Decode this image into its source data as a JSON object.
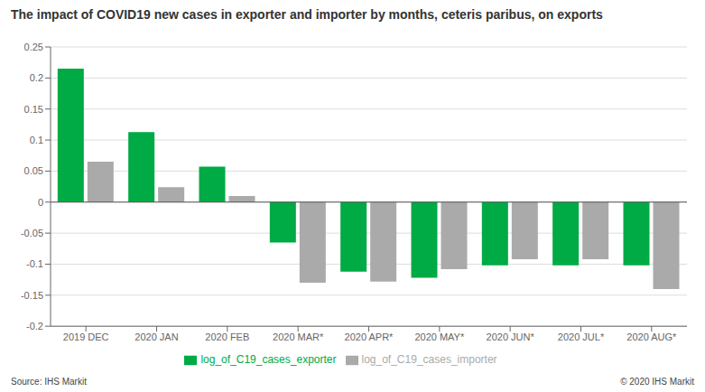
{
  "chart_data": {
    "type": "bar",
    "title": "The impact of COVID19 new cases in exporter and importer by months, ceteris paribus, on exports",
    "categories": [
      "2019 DEC",
      "2020 JAN",
      "2020 FEB",
      "2020 MAR*",
      "2020 APR*",
      "2020 MAY*",
      "2020 JUN*",
      "2020 JUL*",
      "2020 AUG*"
    ],
    "series": [
      {
        "name": "log_of_C19_cases_exporter",
        "color": "#00aa44",
        "values": [
          0.215,
          0.113,
          0.057,
          -0.065,
          -0.112,
          -0.122,
          -0.102,
          -0.102,
          -0.102
        ]
      },
      {
        "name": "log_of_C19_cases_importer",
        "color": "#aaaaaa",
        "values": [
          0.065,
          0.024,
          0.01,
          -0.13,
          -0.128,
          -0.108,
          -0.092,
          -0.092,
          -0.14
        ]
      }
    ],
    "ylim": [
      -0.2,
      0.25
    ],
    "yticks": [
      -0.2,
      -0.15,
      -0.1,
      -0.05,
      0,
      0.05,
      0.1,
      0.15,
      0.2,
      0.25
    ],
    "grid": true,
    "legend": "bottom",
    "annotations": [
      "Source: IHS Markit",
      "© 2020 IHS Markit"
    ]
  }
}
